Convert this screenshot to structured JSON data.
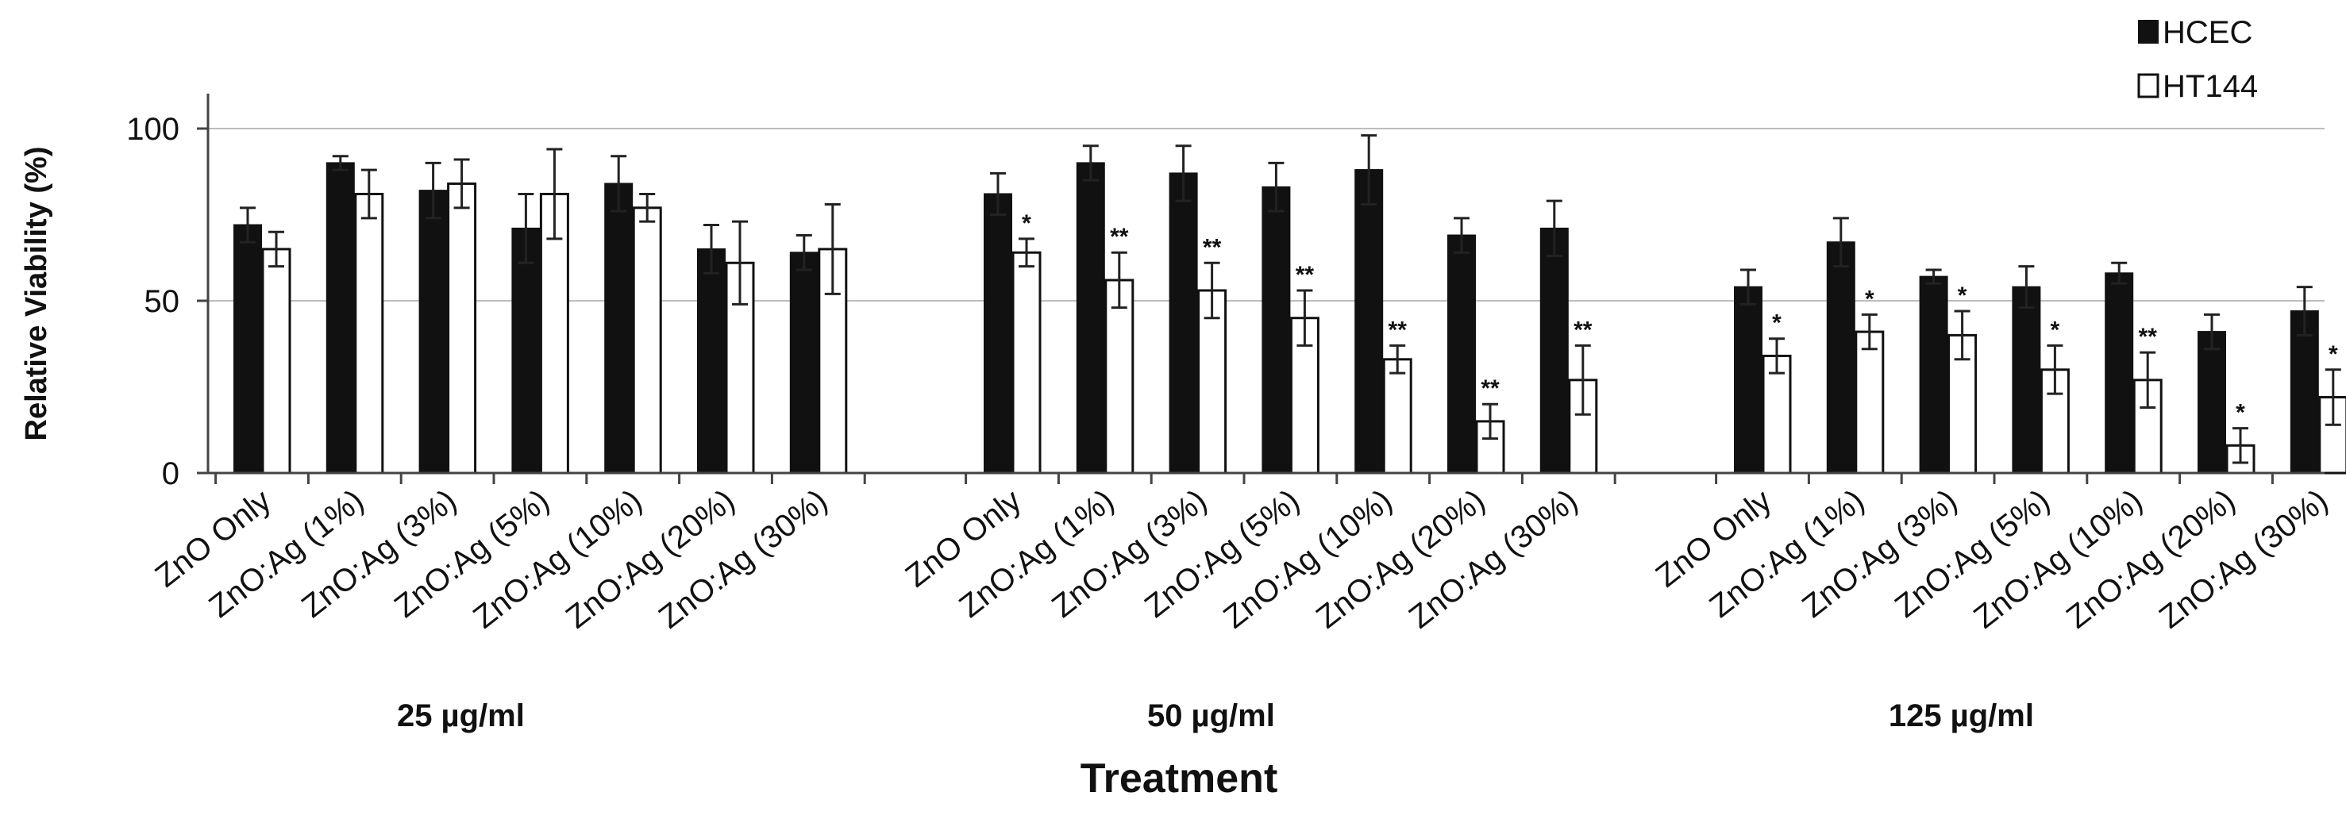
{
  "chart_data": {
    "type": "bar",
    "title": "",
    "xlabel": "Treatment",
    "ylabel": "Relative Viability (%)",
    "ylim": [
      0,
      110
    ],
    "yticks": [
      0,
      50,
      100
    ],
    "grid": true,
    "legend_position": "top-right",
    "series": [
      {
        "name": "HCEC",
        "color": "#111111"
      },
      {
        "name": "HT144",
        "color": "#ffffff"
      }
    ],
    "groups": [
      {
        "label": "25 µg/ml",
        "categories": [
          "ZnO Only",
          "ZnO:Ag (1%)",
          "ZnO:Ag (3%)",
          "ZnO:Ag (5%)",
          "ZnO:Ag (10%)",
          "ZnO:Ag (20%)",
          "ZnO:Ag (30%)"
        ],
        "HCEC": {
          "values": [
            72,
            90,
            82,
            71,
            84,
            65,
            64
          ],
          "errors": [
            5,
            2,
            8,
            10,
            8,
            7,
            5
          ]
        },
        "HT144": {
          "values": [
            65,
            81,
            84,
            81,
            77,
            61,
            65
          ],
          "errors": [
            5,
            7,
            7,
            13,
            4,
            12,
            13
          ],
          "significance": [
            "",
            "",
            "",
            "",
            "",
            "",
            ""
          ]
        }
      },
      {
        "label": "50 µg/ml",
        "categories": [
          "ZnO Only",
          "ZnO:Ag (1%)",
          "ZnO:Ag (3%)",
          "ZnO:Ag (5%)",
          "ZnO:Ag (10%)",
          "ZnO:Ag (20%)",
          "ZnO:Ag (30%)"
        ],
        "HCEC": {
          "values": [
            81,
            90,
            87,
            83,
            88,
            69,
            71
          ],
          "errors": [
            6,
            5,
            8,
            7,
            10,
            5,
            8
          ]
        },
        "HT144": {
          "values": [
            64,
            56,
            53,
            45,
            33,
            15,
            27
          ],
          "errors": [
            4,
            8,
            8,
            8,
            4,
            5,
            10
          ],
          "significance": [
            "*",
            "**",
            "**",
            "**",
            "**",
            "**",
            "**"
          ]
        }
      },
      {
        "label": "125 µg/ml",
        "categories": [
          "ZnO Only",
          "ZnO:Ag (1%)",
          "ZnO:Ag (3%)",
          "ZnO:Ag (5%)",
          "ZnO:Ag (10%)",
          "ZnO:Ag (20%)",
          "ZnO:Ag (30%)"
        ],
        "HCEC": {
          "values": [
            54,
            67,
            57,
            54,
            58,
            41,
            47
          ],
          "errors": [
            5,
            7,
            2,
            6,
            3,
            5,
            7
          ]
        },
        "HT144": {
          "values": [
            34,
            41,
            40,
            30,
            27,
            8,
            22
          ],
          "errors": [
            5,
            5,
            7,
            7,
            8,
            5,
            8
          ],
          "significance": [
            "*",
            "*",
            "*",
            "*",
            "**",
            "*",
            "*"
          ]
        }
      }
    ]
  }
}
